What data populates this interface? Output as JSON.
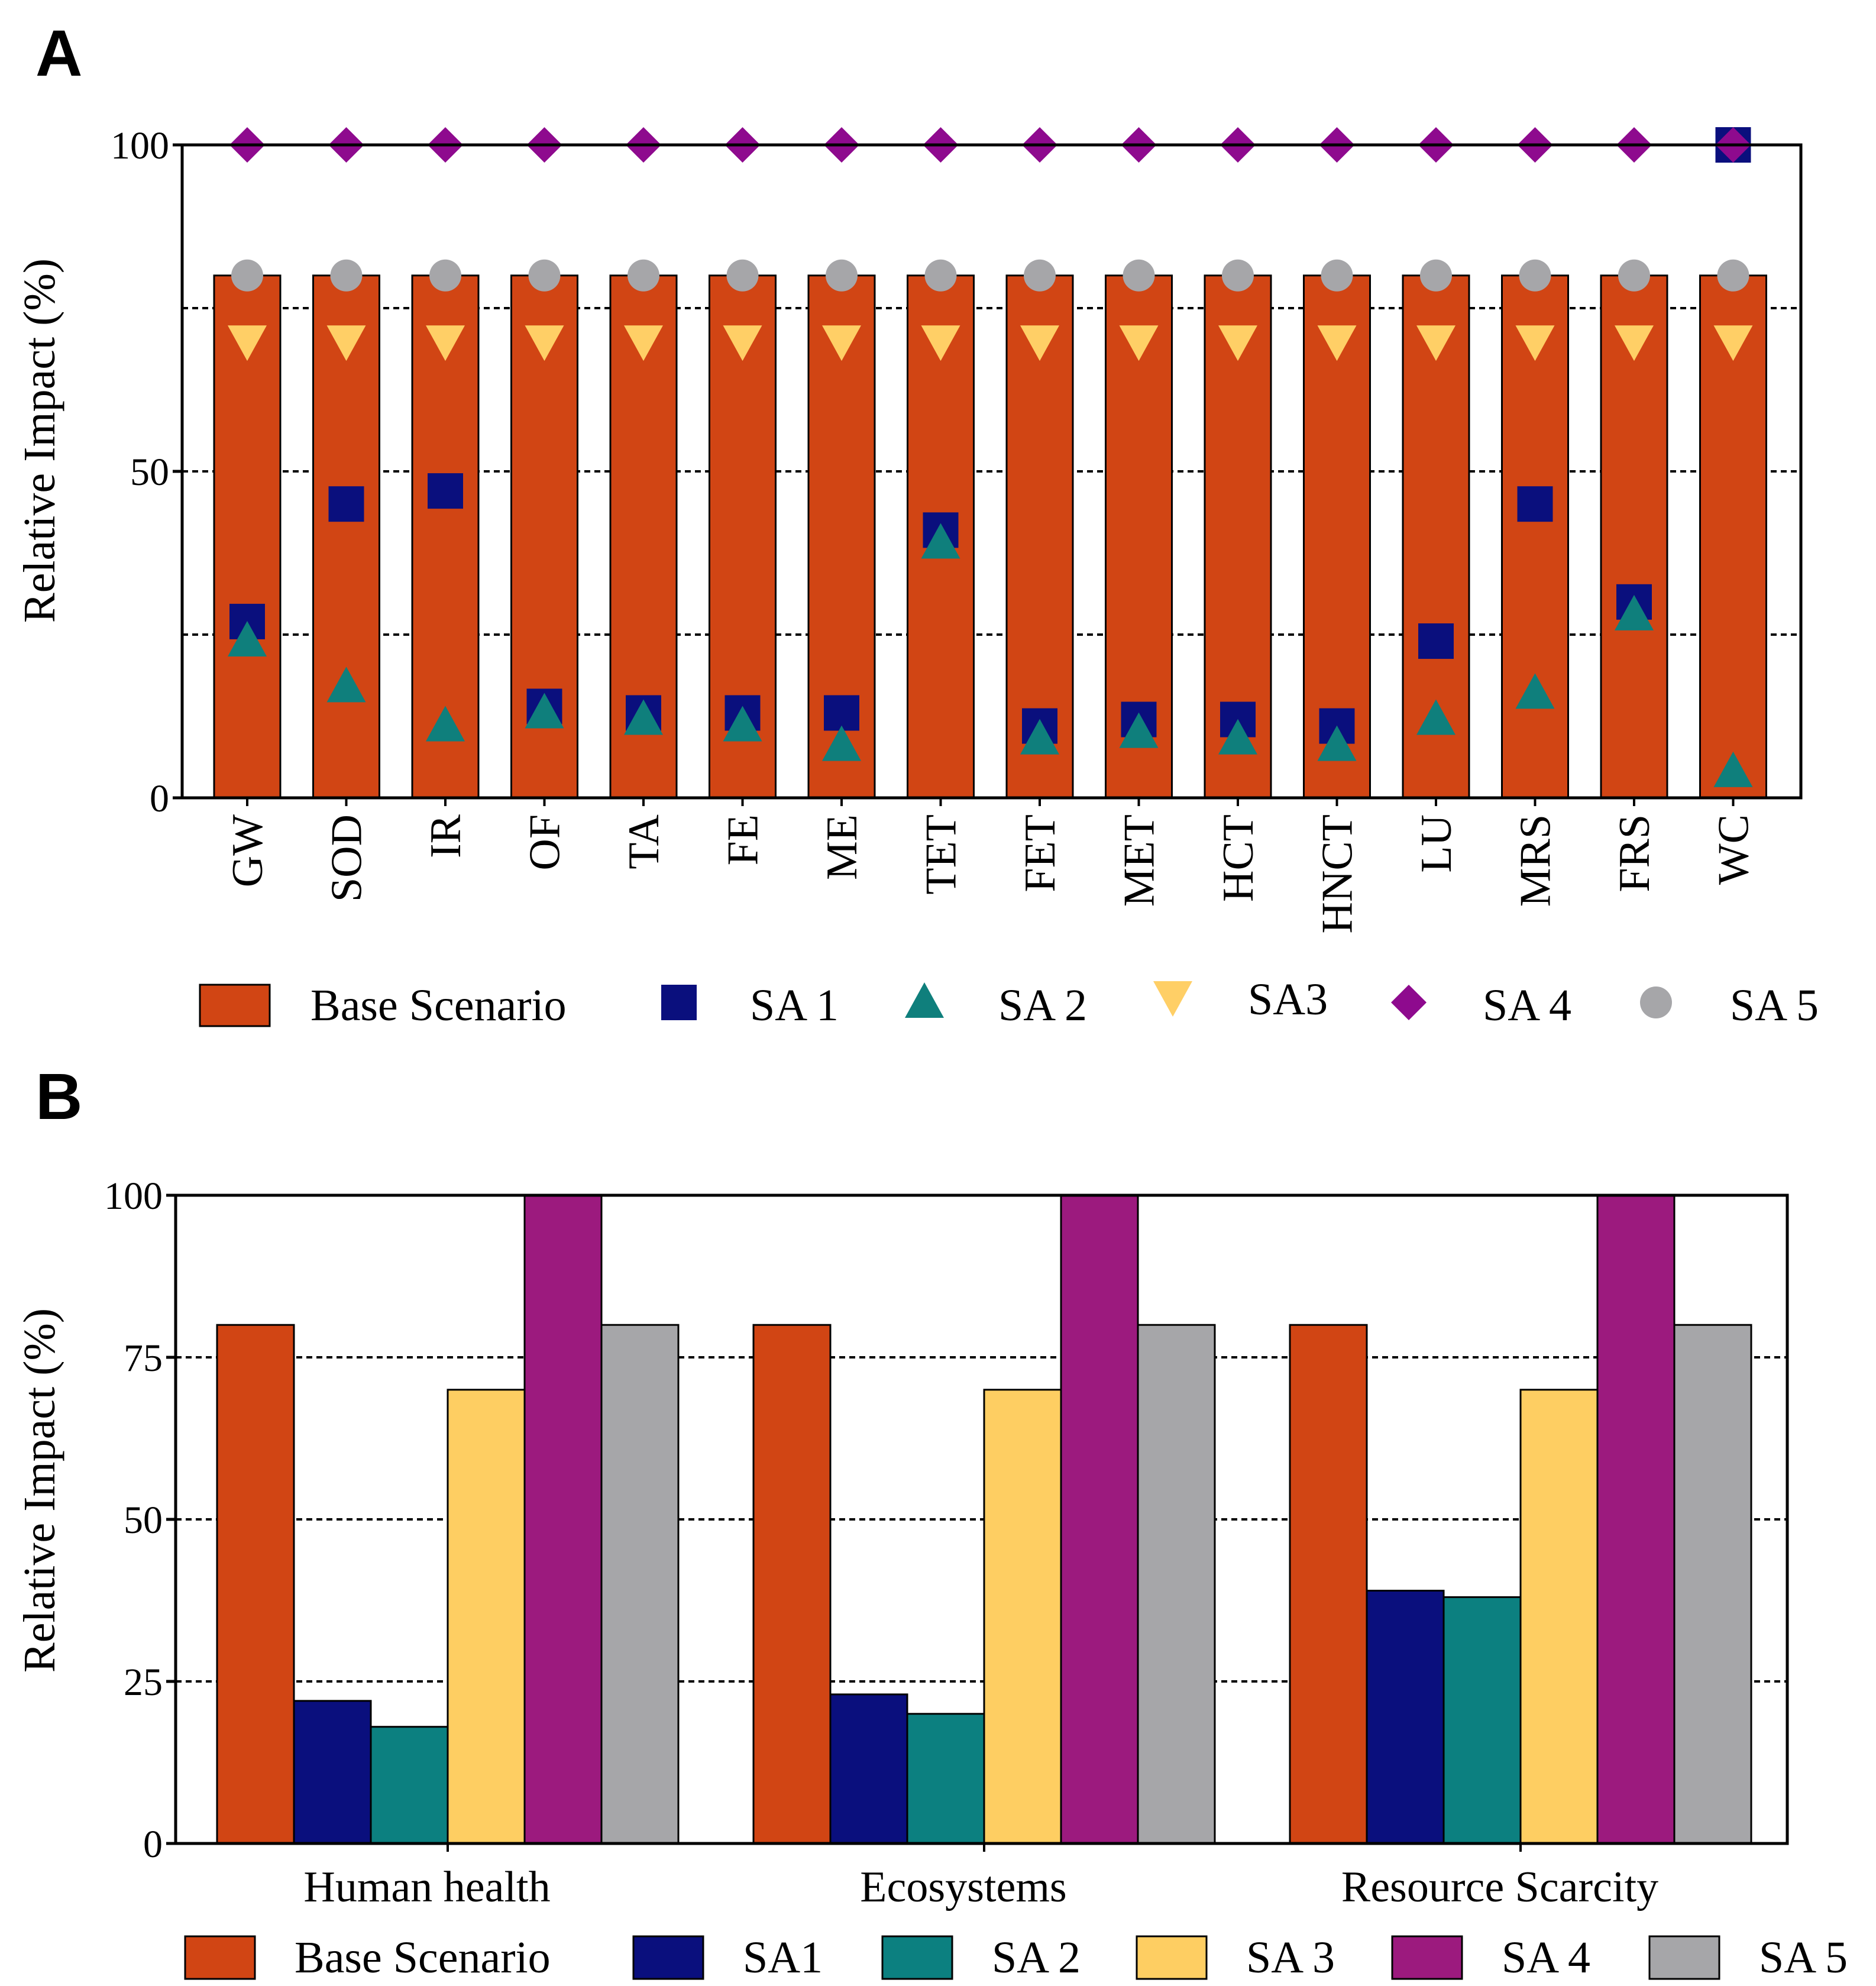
{
  "colors": {
    "base": "#D14514",
    "sa1": "#0A0F7D",
    "sa2": "#0C8080",
    "sa3": "#FECE62",
    "sa4": "#9C1A7E",
    "sa5": "#A6A6A9",
    "sa4_marker": "#8E0A8E",
    "sa3_marker": "#FFCF66",
    "sa2_marker": "#0F7F7C"
  },
  "chart_data": [
    {
      "panel": "A",
      "type": "bar",
      "ylabel": "Relative Impact (%)",
      "ylim": [
        0,
        100
      ],
      "yticks": [
        "0",
        "50",
        "100"
      ],
      "gridlines_at": [
        25,
        50,
        75
      ],
      "categories": [
        "GW",
        "SOD",
        "IR",
        "OF",
        "TA",
        "FE",
        "ME",
        "TET",
        "FET",
        "MET",
        "HCT",
        "HNCT",
        "LU",
        "MRS",
        "FRS",
        "WC"
      ],
      "series": [
        {
          "name": "Base Scenario",
          "kind": "bar",
          "values": [
            80,
            80,
            80,
            80,
            80,
            80,
            80,
            80,
            80,
            80,
            80,
            80,
            80,
            80,
            80,
            80
          ]
        },
        {
          "name": "SA 1",
          "kind": "square",
          "values": [
            27,
            45,
            47,
            14,
            13,
            13,
            13,
            41,
            11,
            12,
            12,
            11,
            24,
            45,
            30,
            100
          ]
        },
        {
          "name": "SA 2",
          "kind": "triangle-up",
          "values": [
            24,
            17,
            11,
            13,
            12,
            11,
            8,
            39,
            9,
            10,
            9,
            8,
            12,
            16,
            28,
            4
          ]
        },
        {
          "name": "SA3",
          "kind": "triangle-down",
          "values": [
            70,
            70,
            70,
            70,
            70,
            70,
            70,
            70,
            70,
            70,
            70,
            70,
            70,
            70,
            70,
            70
          ]
        },
        {
          "name": "SA 4",
          "kind": "diamond",
          "values": [
            100,
            100,
            100,
            100,
            100,
            100,
            100,
            100,
            100,
            100,
            100,
            100,
            100,
            100,
            100,
            100
          ]
        },
        {
          "name": "SA 5",
          "kind": "circle",
          "values": [
            80,
            80,
            80,
            80,
            80,
            80,
            80,
            80,
            80,
            80,
            80,
            80,
            80,
            80,
            80,
            80
          ]
        }
      ],
      "legend": [
        "Base Scenario",
        "SA 1",
        "SA 2",
        "SA3",
        "SA 4",
        "SA 5"
      ]
    },
    {
      "panel": "B",
      "type": "bar",
      "ylabel": "Relative Impact (%)",
      "ylim": [
        0,
        100
      ],
      "yticks": [
        "0",
        "25",
        "50",
        "75",
        "100"
      ],
      "gridlines_at": [
        25,
        50,
        75
      ],
      "categories": [
        "Human health",
        "Ecosystems",
        "Resource Scarcity"
      ],
      "series": [
        {
          "name": "Base Scenario",
          "values": [
            80,
            80,
            80
          ]
        },
        {
          "name": "SA1",
          "values": [
            22,
            23,
            39
          ]
        },
        {
          "name": "SA 2",
          "values": [
            18,
            20,
            38
          ]
        },
        {
          "name": "SA 3",
          "values": [
            70,
            70,
            70
          ]
        },
        {
          "name": "SA 4",
          "values": [
            100,
            100,
            100
          ]
        },
        {
          "name": "SA 5",
          "values": [
            80,
            80,
            80
          ]
        }
      ],
      "legend": [
        "Base Scenario",
        "SA1",
        "SA 2",
        "SA 3",
        "SA 4",
        "SA 5"
      ]
    }
  ],
  "panels": {
    "a_label": "A",
    "b_label": "B"
  }
}
